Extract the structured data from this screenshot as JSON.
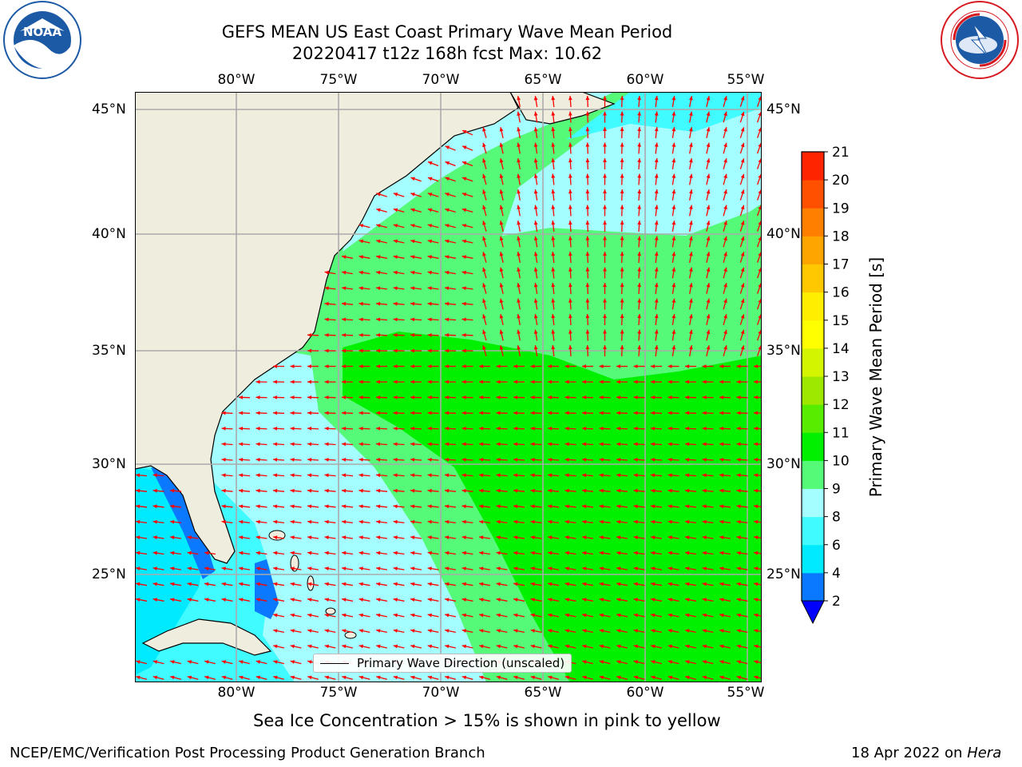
{
  "header": {
    "title_line1": "GEFS MEAN US East Coast Primary Wave Mean Period",
    "title_line2": "20220417 t12z 168h fcst   Max: 10.62"
  },
  "logos": {
    "left": {
      "text": "NOAA",
      "ring_text": "NATIONAL OCEANIC AND ATMOSPHERIC ADMINISTRATION · U.S. DEPARTMENT OF COMMERCE",
      "color": "#1c5aa6"
    },
    "right": {
      "ring_text": "NATIONAL WEATHER SERVICE",
      "color": "#d71920"
    }
  },
  "map": {
    "lon_labels": [
      "80°W",
      "75°W",
      "70°W",
      "65°W",
      "60°W",
      "55°W"
    ],
    "lat_labels": [
      "45°N",
      "40°N",
      "35°N",
      "30°N",
      "25°N"
    ],
    "legend_label": "Primary Wave Direction (unscaled)",
    "arrow_color": "#ff0000",
    "land_color": "#efedde"
  },
  "colorbar": {
    "label": "Primary Wave Mean Period [s]",
    "ticks": [
      "2",
      "4",
      "6",
      "8",
      "9",
      "10",
      "11",
      "12",
      "13",
      "14",
      "15",
      "16",
      "17",
      "18",
      "19",
      "20",
      "21"
    ],
    "colors": [
      "#0a78ff",
      "#00eaff",
      "#40fbff",
      "#a4fdff",
      "#55fa78",
      "#00f000",
      "#58ec00",
      "#9ee800",
      "#d4f500",
      "#ffff00",
      "#ffee00",
      "#ffc800",
      "#ffa500",
      "#ff8000",
      "#ff5000",
      "#ff2400"
    ],
    "under_color": "#0000ff"
  },
  "footer": {
    "note": "Sea Ice Concentration > 15% is shown in pink to yellow",
    "credit": "NCEP/EMC/Verification Post Processing Product Generation Branch",
    "date_prefix": "18 Apr 2022 on",
    "machine": "Hera"
  }
}
